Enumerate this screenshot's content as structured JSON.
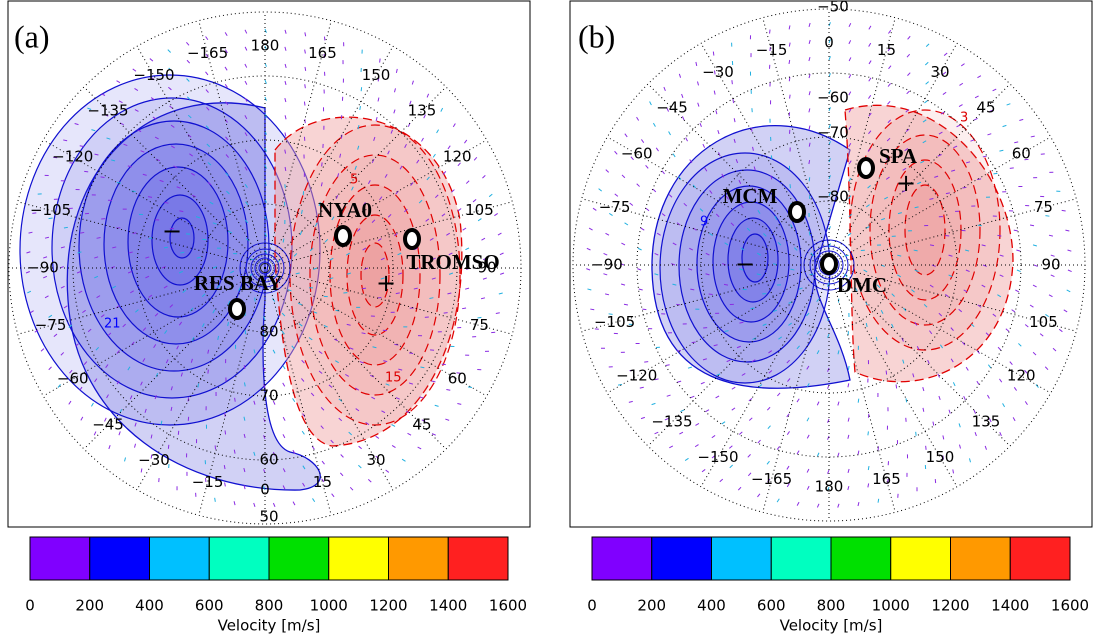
{
  "panels": [
    {
      "label": "(a)",
      "longitude_labels": [
        "180",
        "165",
        "150",
        "135",
        "120",
        "105",
        "90",
        "75",
        "60",
        "45",
        "30",
        "15",
        "0",
        "−15",
        "−30",
        "−45",
        "−60",
        "−75",
        "−90",
        "−105",
        "−120",
        "−135",
        "−150",
        "−165"
      ],
      "latitude_labels": [
        "80",
        "70",
        "60",
        "50"
      ],
      "stations": [
        {
          "name": "RES BAY"
        },
        {
          "name": "NYA0"
        },
        {
          "name": "TROMSO"
        }
      ],
      "contour_labels": [
        "21",
        "15",
        "5"
      ],
      "extremes": [
        "−",
        "+"
      ]
    },
    {
      "label": "(b)",
      "longitude_labels": [
        "0",
        "15",
        "30",
        "45",
        "60",
        "75",
        "90",
        "105",
        "120",
        "135",
        "150",
        "165",
        "180",
        "−165",
        "−150",
        "−135",
        "−120",
        "−105",
        "−90",
        "−75",
        "−60",
        "−45",
        "−30",
        "−15"
      ],
      "latitude_labels": [
        "−80",
        "−70",
        "−60",
        "−50"
      ],
      "stations": [
        {
          "name": "SPA"
        },
        {
          "name": "MCM"
        },
        {
          "name": "DMC"
        }
      ],
      "contour_labels": [
        "9",
        "3"
      ],
      "extremes": [
        "−",
        "+"
      ]
    }
  ],
  "colorbars": [
    {
      "ticks": [
        0,
        200,
        400,
        600,
        800,
        1000,
        1200,
        1400,
        1600
      ],
      "colors": [
        "#8000ff",
        "#0000ff",
        "#00c0ff",
        "#00ffc0",
        "#00e000",
        "#ffff00",
        "#ff9900",
        "#ff2020"
      ],
      "title": "Velocity [m/s]"
    },
    {
      "ticks": [
        0,
        200,
        400,
        600,
        800,
        1000,
        1200,
        1400,
        1600
      ],
      "colors": [
        "#8000ff",
        "#0000ff",
        "#00c0ff",
        "#00ffc0",
        "#00e000",
        "#ffff00",
        "#ff9900",
        "#ff2020"
      ],
      "title": "Velocity [m/s]"
    }
  ]
}
